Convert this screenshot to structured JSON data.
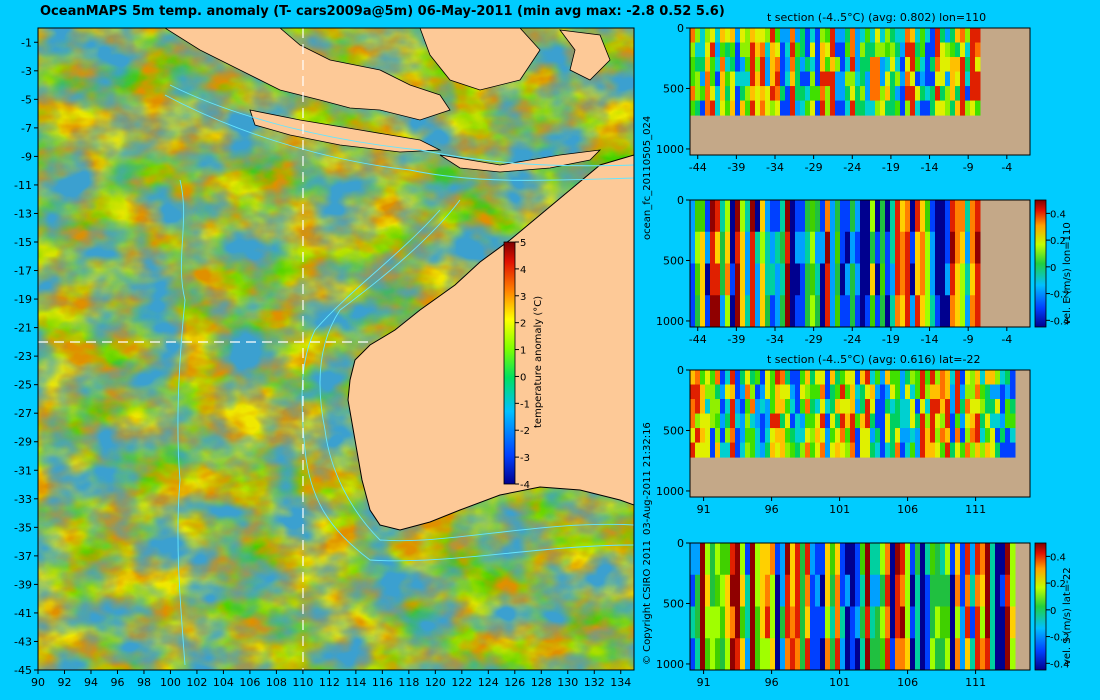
{
  "figure": {
    "title": "OceanMAPS 5m temp. anomaly (T- cars2009a@5m) 06-May-2011 (min avg max: -2.8 0.52 5.6)",
    "run_id": "ocean_fc_20110505_024",
    "timestamp": "03-Aug-2011 21:32:16",
    "copyright": "© Copyright CSIRO 2011"
  },
  "colors": {
    "background": "#00ccff",
    "land": "#fdc997",
    "section_land": "#c4a888",
    "contour": "#66e6ff",
    "section_line": "#ffffff"
  },
  "chart_data": [
    {
      "type": "heatmap",
      "title": "OceanMAPS 5m temp. anomaly (T- cars2009a@5m) 06-May-2011 (min avg max: -2.8 0.52 5.6)",
      "x_ticks": [
        90,
        92,
        94,
        96,
        98,
        100,
        102,
        104,
        106,
        108,
        110,
        112,
        114,
        116,
        118,
        120,
        122,
        124,
        126,
        128,
        130,
        132,
        134
      ],
      "y_ticks": [
        -1,
        -3,
        -5,
        -7,
        -9,
        -11,
        -13,
        -15,
        -17,
        -19,
        -21,
        -23,
        -25,
        -27,
        -29,
        -31,
        -33,
        -35,
        -37,
        -39,
        -41,
        -43,
        -45
      ],
      "xlim": [
        90,
        135
      ],
      "ylim": [
        -45,
        0
      ],
      "section_lines": {
        "lon": 110,
        "lat": -22
      },
      "colorbar": {
        "label": "temperature anomaly (°C)",
        "ticks": [
          5,
          4,
          3,
          2,
          1,
          0,
          -1,
          -2,
          -3,
          -4
        ],
        "range": [
          -4,
          5
        ]
      },
      "stats": {
        "min": -2.8,
        "avg": 0.52,
        "max": 5.6
      }
    },
    {
      "type": "heatmap",
      "title": "t section (-4..5°C) (avg: 0.802) lon=110",
      "x_ticks": [
        -44,
        -39,
        -34,
        -29,
        -24,
        -19,
        -14,
        -9,
        -4
      ],
      "y_ticks": [
        0,
        500,
        1000
      ],
      "xlim": [
        -45,
        -1
      ],
      "ylim": [
        1050,
        0
      ],
      "data_max_depth": 720,
      "land_from": -8,
      "seed": 11
    },
    {
      "type": "heatmap",
      "title": "",
      "ylabel": "vel. E (m/s) lon=110",
      "x_ticks": [
        -44,
        -39,
        -34,
        -29,
        -24,
        -19,
        -14,
        -9,
        -4
      ],
      "y_ticks": [
        0,
        500,
        1000
      ],
      "xlim": [
        -45,
        -1
      ],
      "ylim": [
        1050,
        0
      ],
      "data_max_depth": 1050,
      "land_from": -8,
      "colorbar": {
        "ticks": [
          0.4,
          0.2,
          0,
          -0.2,
          -0.4
        ],
        "range": [
          -0.45,
          0.5
        ]
      },
      "seed": 23
    },
    {
      "type": "heatmap",
      "title": "t section (-4..5°C) (avg: 0.616) lat=-22",
      "x_ticks": [
        91,
        96,
        101,
        106,
        111
      ],
      "y_ticks": [
        0,
        500,
        1000
      ],
      "xlim": [
        90,
        115
      ],
      "ylim": [
        1050,
        0
      ],
      "data_max_depth": 720,
      "land_from": 113.8,
      "seed": 37
    },
    {
      "type": "heatmap",
      "title": "",
      "ylabel": "vel. S (m/s) lat=-22",
      "x_ticks": [
        91,
        96,
        101,
        106,
        111
      ],
      "y_ticks": [
        0,
        500,
        1000
      ],
      "xlim": [
        90,
        115
      ],
      "ylim": [
        1050,
        0
      ],
      "data_max_depth": 1050,
      "land_from": 113.8,
      "colorbar": {
        "ticks": [
          0.4,
          0.2,
          0,
          -0.2,
          -0.4
        ],
        "range": [
          -0.45,
          0.5
        ]
      },
      "seed": 51
    }
  ]
}
